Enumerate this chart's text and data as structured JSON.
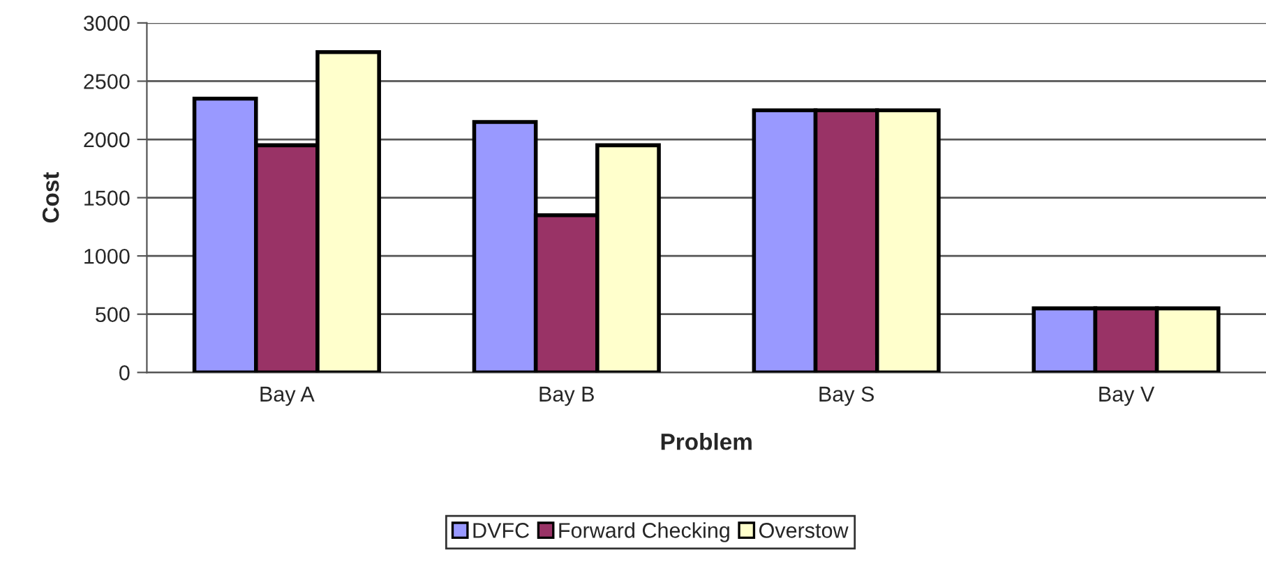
{
  "chart_data": {
    "type": "bar",
    "xlabel": "Problem",
    "ylabel": "Cost",
    "categories": [
      "Bay A",
      "Bay B",
      "Bay S",
      "Bay V"
    ],
    "series": [
      {
        "name": "DVFC",
        "color": "#9999ff",
        "values": [
          2350,
          2150,
          2250,
          550
        ]
      },
      {
        "name": "Forward Checking",
        "color": "#993366",
        "values": [
          1950,
          1350,
          2250,
          550
        ]
      },
      {
        "name": "Overstow",
        "color": "#ffffcc",
        "values": [
          2750,
          1950,
          2250,
          550
        ]
      }
    ],
    "ylim": [
      0,
      3000
    ],
    "yticks": [
      0,
      500,
      1000,
      1500,
      2000,
      2500,
      3000
    ],
    "grid": "y",
    "legend": "bottom"
  }
}
